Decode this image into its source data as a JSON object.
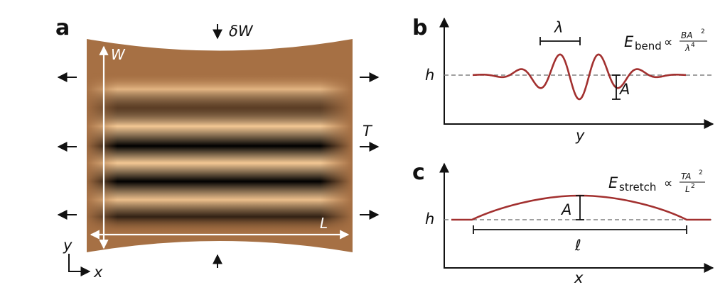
{
  "colors": {
    "sheet_base": "#a67044",
    "wrinkle_light": "#f7cc98",
    "wrinkle_dark": "#000000",
    "curve": "#a2302f",
    "dashed": "#808080",
    "axis": "#111111"
  },
  "panel_a": {
    "label": "a",
    "width_label": "W",
    "length_label": "L",
    "compression_label": "δW",
    "tension_label": "T",
    "y_axis_label": "y",
    "x_axis_label": "x"
  },
  "panel_b": {
    "label": "b",
    "baseline_label": "h",
    "wavelength_label": "λ",
    "amplitude_label": "A",
    "x_axis_label": "y",
    "energy": {
      "symbol": "E",
      "subscript": "bend",
      "relation": "∝",
      "numerator": "BA",
      "numerator_exp": "2",
      "denominator": "λ",
      "denominator_exp": "4"
    }
  },
  "panel_c": {
    "label": "c",
    "baseline_label": "h",
    "amplitude_label": "A",
    "length_label": "ℓ",
    "x_axis_label": "x",
    "energy": {
      "symbol": "E",
      "subscript": "stretch",
      "relation": "∝",
      "numerator": "TA",
      "numerator_exp": "2",
      "denominator": "L",
      "denominator_exp": "2"
    }
  }
}
